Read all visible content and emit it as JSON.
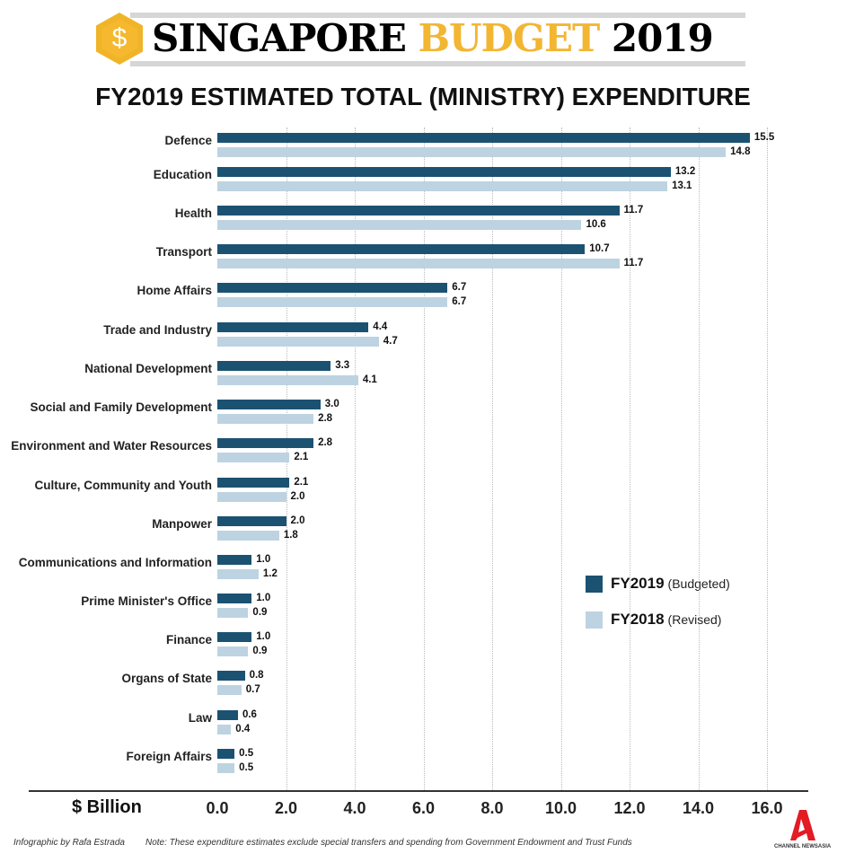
{
  "header": {
    "brand_black": "SINGAPORE",
    "brand_yellow": "BUDGET",
    "brand_year": "2019",
    "title": "FY2019 ESTIMATED TOTAL (MINISTRY) EXPENDITURE"
  },
  "chart_data": {
    "type": "bar",
    "orientation": "horizontal",
    "title": "FY2019 ESTIMATED TOTAL (MINISTRY) EXPENDITURE",
    "xlabel": "$ Billion",
    "xlim": [
      0,
      16
    ],
    "xticks": [
      "0.0",
      "2.0",
      "4.0",
      "6.0",
      "8.0",
      "10.0",
      "12.0",
      "14.0",
      "16.0"
    ],
    "grid": "vertical dotted",
    "legend": "right",
    "categories": [
      "Defence",
      "Education",
      "Health",
      "Transport",
      "Home Affairs",
      "Trade and Industry",
      "National Development",
      "Social and Family Development",
      "Environment and Water Resources",
      "Culture, Community and Youth",
      "Manpower",
      "Communications and Information",
      "Prime Minister's Office",
      "Finance",
      "Organs of State",
      "Law",
      "Foreign Affairs"
    ],
    "series": [
      {
        "name": "FY2019",
        "note": "(Budgeted)",
        "color": "#1b5272",
        "values": [
          15.5,
          13.2,
          11.7,
          10.7,
          6.7,
          4.4,
          3.3,
          3.0,
          2.8,
          2.1,
          2.0,
          1.0,
          1.0,
          1.0,
          0.8,
          0.6,
          0.5
        ]
      },
      {
        "name": "FY2018",
        "note": "(Revised)",
        "color": "#bdd3e1",
        "values": [
          14.8,
          13.1,
          10.6,
          11.7,
          6.7,
          4.7,
          4.1,
          2.8,
          2.1,
          2.0,
          1.8,
          1.2,
          0.9,
          0.9,
          0.7,
          0.4,
          0.5
        ]
      }
    ]
  },
  "footer": {
    "credit": "Infographic by Rafa Estrada",
    "note": "Note: These expenditure estimates exclude special transfers and spending from Government Endowment and Trust Funds",
    "logo_text": "CHANNEL NEWSASIA"
  }
}
